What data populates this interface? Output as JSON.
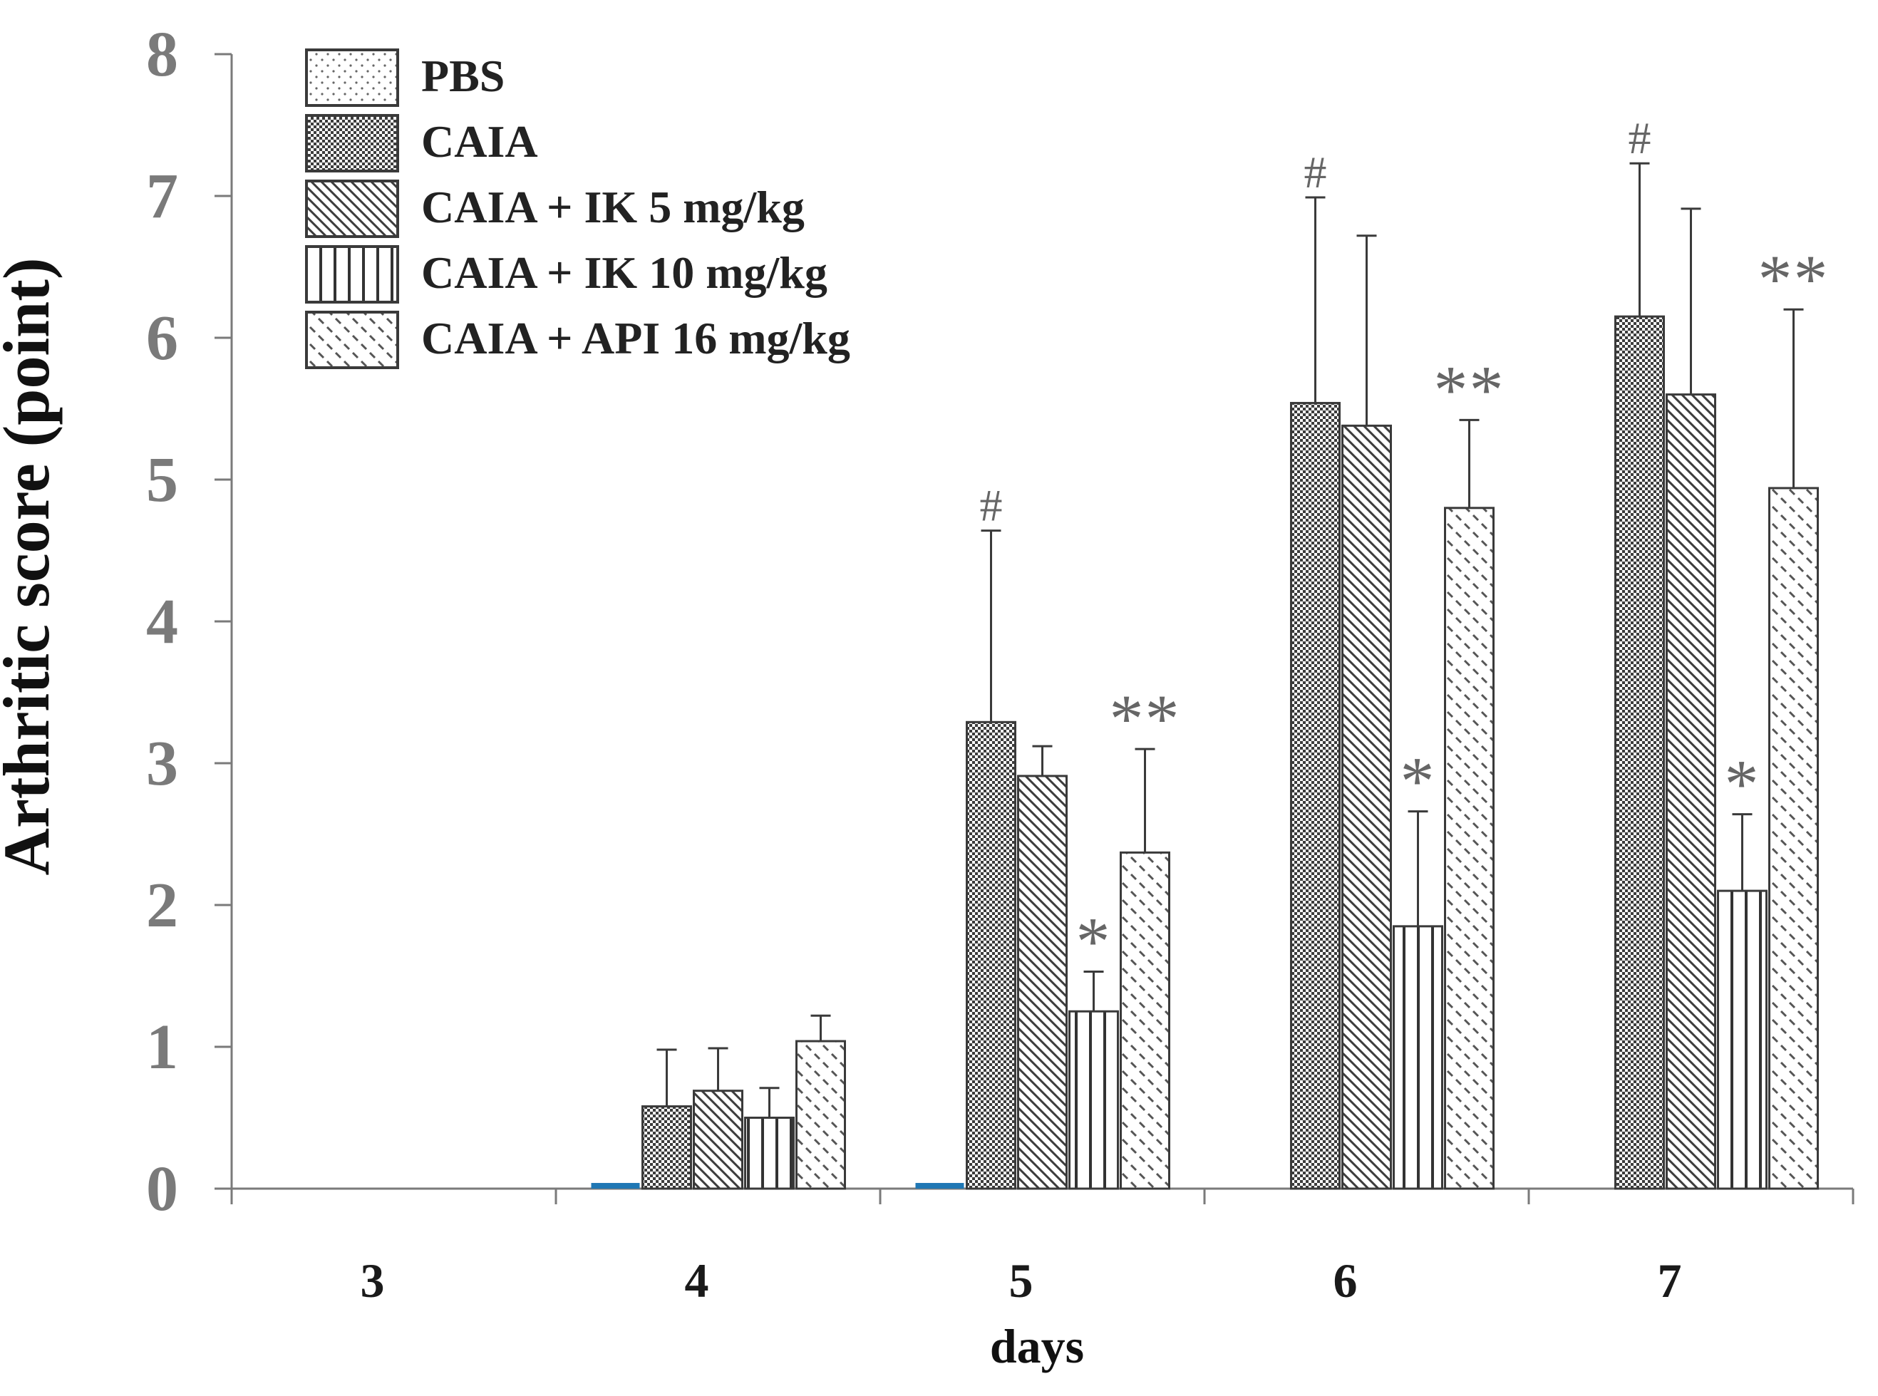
{
  "chart_data": {
    "type": "bar",
    "title": "",
    "xlabel": "days",
    "ylabel": "Arthritic score (point)",
    "ylim": [
      0,
      8
    ],
    "yticks": [
      "0",
      "1",
      "2",
      "3",
      "4",
      "5",
      "6",
      "7",
      "8"
    ],
    "categories": [
      "3",
      "4",
      "5",
      "6",
      "7"
    ],
    "legend_position": "top-left",
    "series": [
      {
        "name": "PBS",
        "pattern": "dots",
        "values": [
          0,
          0.03,
          0.03,
          null,
          null
        ],
        "errors": [
          0,
          0,
          0,
          0,
          0
        ]
      },
      {
        "name": "CAIA",
        "pattern": "checker",
        "values": [
          0,
          0.58,
          3.29,
          5.54,
          6.15
        ],
        "errors": [
          0,
          0.4,
          1.35,
          1.45,
          1.08
        ]
      },
      {
        "name": "CAIA + IK 5 mg/kg",
        "pattern": "diagonal",
        "values": [
          0,
          0.69,
          2.91,
          5.38,
          5.6
        ],
        "errors": [
          0,
          0.3,
          0.21,
          1.34,
          1.31
        ]
      },
      {
        "name": "CAIA + IK 10 mg/kg",
        "pattern": "vertical",
        "values": [
          0,
          0.5,
          1.25,
          1.85,
          2.1
        ],
        "errors": [
          0,
          0.21,
          0.28,
          0.81,
          0.54
        ]
      },
      {
        "name": "CAIA + API 16 mg/kg",
        "pattern": "dashes",
        "values": [
          0,
          1.04,
          2.37,
          4.8,
          4.94
        ],
        "errors": [
          0,
          0.18,
          0.73,
          0.62,
          1.26
        ]
      }
    ],
    "annotations": [
      {
        "category": "5",
        "series": 1,
        "text": "#"
      },
      {
        "category": "6",
        "series": 1,
        "text": "#"
      },
      {
        "category": "7",
        "series": 1,
        "text": "#"
      },
      {
        "category": "5",
        "series": 3,
        "text": "*"
      },
      {
        "category": "6",
        "series": 3,
        "text": "*"
      },
      {
        "category": "7",
        "series": 3,
        "text": "*"
      },
      {
        "category": "5",
        "series": 4,
        "text": "**"
      },
      {
        "category": "6",
        "series": 4,
        "text": "**"
      },
      {
        "category": "7",
        "series": 4,
        "text": "**"
      }
    ],
    "colors": {
      "axis": "#7a7a7a",
      "bar_stroke": "#3a3a3a",
      "pbs_bar": "#1f77b4",
      "text_gray": "#666666"
    }
  }
}
